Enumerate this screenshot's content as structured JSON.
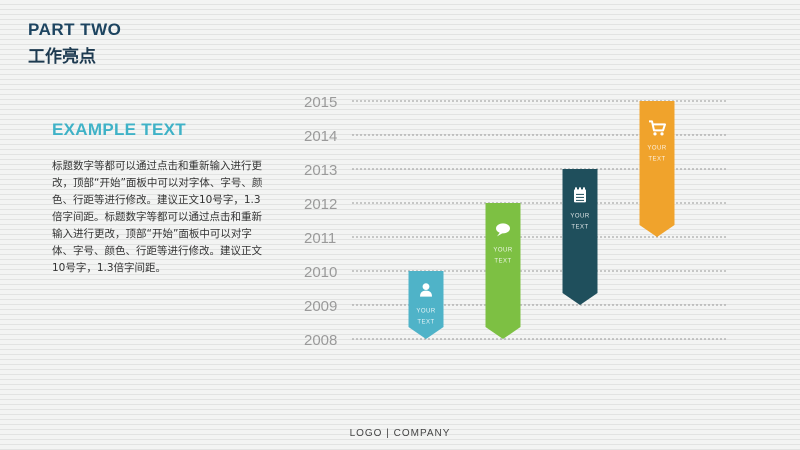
{
  "header": {
    "part_label": "PART TWO",
    "subtitle": "工作亮点"
  },
  "content": {
    "heading": "EXAMPLE TEXT",
    "body": "标题数字等都可以通过点击和重新输入进行更改，顶部“开始”面板中可以对字体、字号、颜色、行距等进行修改。建议正文10号字，1.3倍字间距。标题数字等都可以通过点击和重新输入进行更改，顶部“开始”面板中可以对字体、字号、颜色、行距等进行修改。建议正文10号字，1.3倍字间距。"
  },
  "chart_data": {
    "type": "bar",
    "years": [
      2015,
      2014,
      2013,
      2012,
      2011,
      2010,
      2009,
      2008
    ],
    "tick_labels": [
      "2015",
      "2014",
      "2013",
      "2012",
      "2011",
      "2010",
      "2009",
      "2008"
    ],
    "markers": [
      {
        "top_year": 2010,
        "bottom_year": 2008,
        "color": "#4fb3c8",
        "icon": "user-icon",
        "line1": "YOUR",
        "line2": "TEXT"
      },
      {
        "top_year": 2012,
        "bottom_year": 2008,
        "color": "#7dc043",
        "icon": "chat-bubble-icon",
        "line1": "YOUR",
        "line2": "TEXT"
      },
      {
        "top_year": 2013,
        "bottom_year": 2009,
        "color": "#1f4f5c",
        "icon": "notepad-icon",
        "line1": "YOUR",
        "line2": "TEXT"
      },
      {
        "top_year": 2015,
        "bottom_year": 2011,
        "color": "#f0a32c",
        "icon": "shopping-cart-icon",
        "line1": "YOUR",
        "line2": "TEXT"
      }
    ]
  },
  "footer": {
    "text": "LOGO  |  COMPANY"
  }
}
